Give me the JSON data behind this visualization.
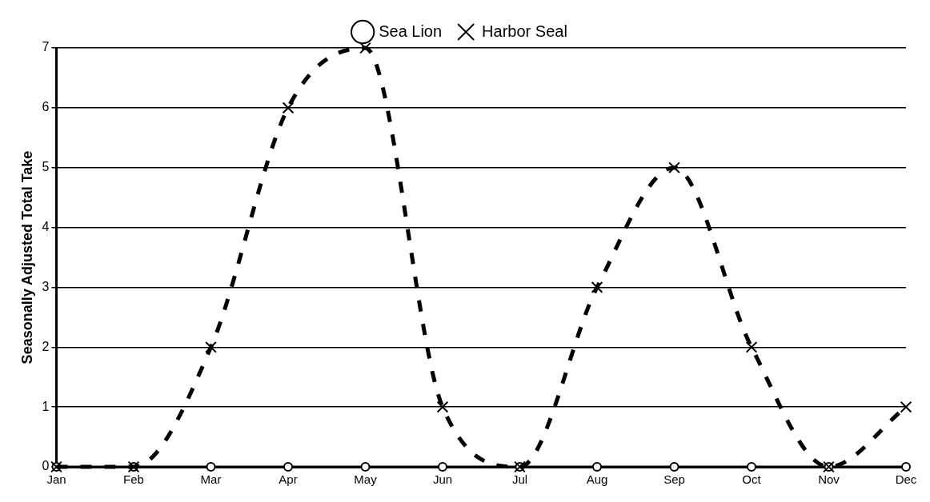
{
  "chart_data": {
    "type": "line",
    "categories": [
      "Jan",
      "Feb",
      "Mar",
      "Apr",
      "May",
      "Jun",
      "Jul",
      "Aug",
      "Sep",
      "Oct",
      "Nov",
      "Dec"
    ],
    "ylabel": "Seasonally Adjusted Total Take",
    "series": [
      {
        "name": "Sea Lion",
        "color": "#000000",
        "marker": "circle",
        "line_style": "solid",
        "values": [
          0,
          0,
          0,
          0,
          0,
          0,
          0,
          0,
          0,
          0,
          0,
          0
        ]
      },
      {
        "name": "Harbor Seal",
        "color": "#000000",
        "marker": "cross",
        "line_style": "dashed",
        "values": [
          0,
          0,
          2,
          6,
          7,
          1,
          0,
          3,
          5,
          2,
          0,
          1
        ]
      }
    ],
    "ylim": [
      0,
      7
    ],
    "yticks": [
      0,
      1,
      2,
      3,
      4,
      5,
      6,
      7
    ],
    "grid": "y",
    "legend": "top"
  }
}
